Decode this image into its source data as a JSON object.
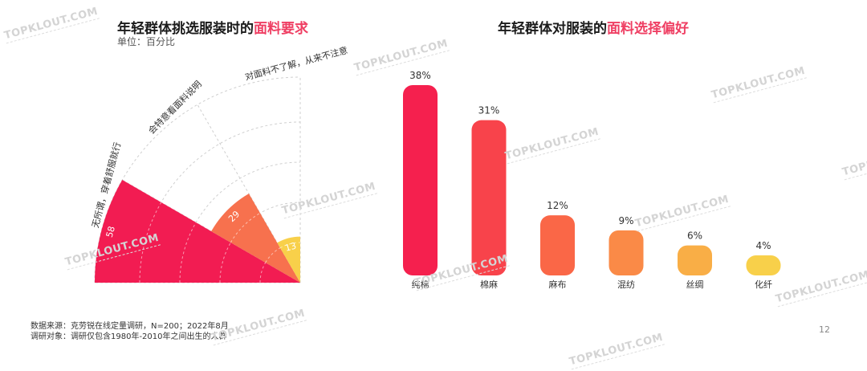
{
  "left_title": {
    "prefix": "年轻群体挑选服装时的",
    "highlight": "面料要求"
  },
  "unit": "单位：百分比",
  "right_title": {
    "prefix": "年轻群体对服装的",
    "highlight": "面料选择偏好"
  },
  "footer": {
    "source": "数据来源：克劳锐在线定量调研，N=200；2022年8月",
    "subject": "调研对象：调研仅包含1980年-2010年之间出生的人群",
    "page": "12"
  },
  "watermark": "TOPKLOUT.COM",
  "chart_data": [
    {
      "type": "pie",
      "variant": "rose-quarter",
      "title": "年轻群体挑选服装时的面料要求",
      "unit": "单位：百分比",
      "categories": [
        "无所谓，穿着舒服就行",
        "会特意看面料说明",
        "对面料不了解，从来不注意"
      ],
      "values": [
        58,
        29,
        13
      ],
      "colors": [
        "#f21c52",
        "#f7714e",
        "#f8d04a"
      ]
    },
    {
      "type": "bar",
      "title": "年轻群体对服装的面料选择偏好",
      "categories": [
        "纯棉",
        "棉麻",
        "麻布",
        "混纺",
        "丝绸",
        "化纤"
      ],
      "values": [
        38,
        31,
        12,
        9,
        6,
        4
      ],
      "value_labels": [
        "38%",
        "31%",
        "12%",
        "9%",
        "6%",
        "4%"
      ],
      "colors": [
        "#f5204e",
        "#f8434b",
        "#fa6747",
        "#fa8a47",
        "#f9ae46",
        "#f8d04a"
      ],
      "ylim": [
        0,
        38
      ]
    }
  ]
}
